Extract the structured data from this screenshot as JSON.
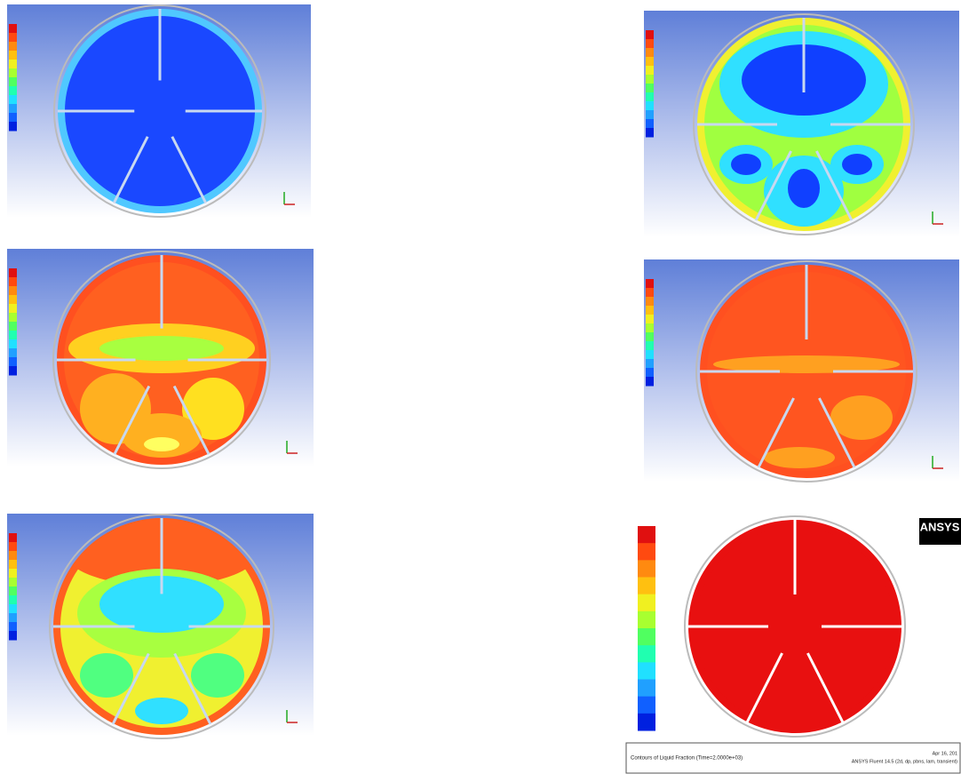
{
  "brand": "ANSYS",
  "footer": {
    "caption": "Contours of Liquid Fraction (Time=2.0000e+03)",
    "software": "ANSYS Fluent 14.5 (2d, dp, pbns, lam, transient)",
    "date": "Apr 16, 201"
  }
}
